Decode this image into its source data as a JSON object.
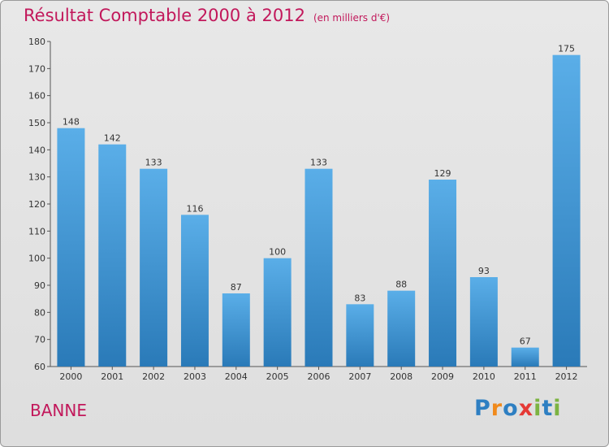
{
  "header": {
    "title": "Résultat Comptable 2000 à 2012",
    "subtitle": "(en milliers d'€)"
  },
  "footer": {
    "place": "BANNE",
    "logo": "Proxiti"
  },
  "colors": {
    "title": "#c2185b",
    "bar_top": "#5aaee8",
    "bar_bottom": "#2a7ab8",
    "background": "#e4e4e4",
    "logo": [
      "#2e7fc2",
      "#f08a1c",
      "#2e7fc2",
      "#e53935",
      "#7cb342",
      "#2e7fc2",
      "#7cb342"
    ]
  },
  "chart_data": {
    "type": "bar",
    "title": "Résultat Comptable 2000 à 2012",
    "subtitle": "(en milliers d'€)",
    "categories": [
      "2000",
      "2001",
      "2002",
      "2003",
      "2004",
      "2005",
      "2006",
      "2007",
      "2008",
      "2009",
      "2010",
      "2011",
      "2012"
    ],
    "values": [
      148,
      142,
      133,
      116,
      87,
      100,
      133,
      83,
      88,
      129,
      93,
      67,
      175
    ],
    "ylim": [
      60,
      180
    ],
    "yticks": [
      60,
      70,
      80,
      90,
      100,
      110,
      120,
      130,
      140,
      150,
      160,
      170,
      180
    ],
    "xlabel": "",
    "ylabel": "",
    "grid": false
  }
}
